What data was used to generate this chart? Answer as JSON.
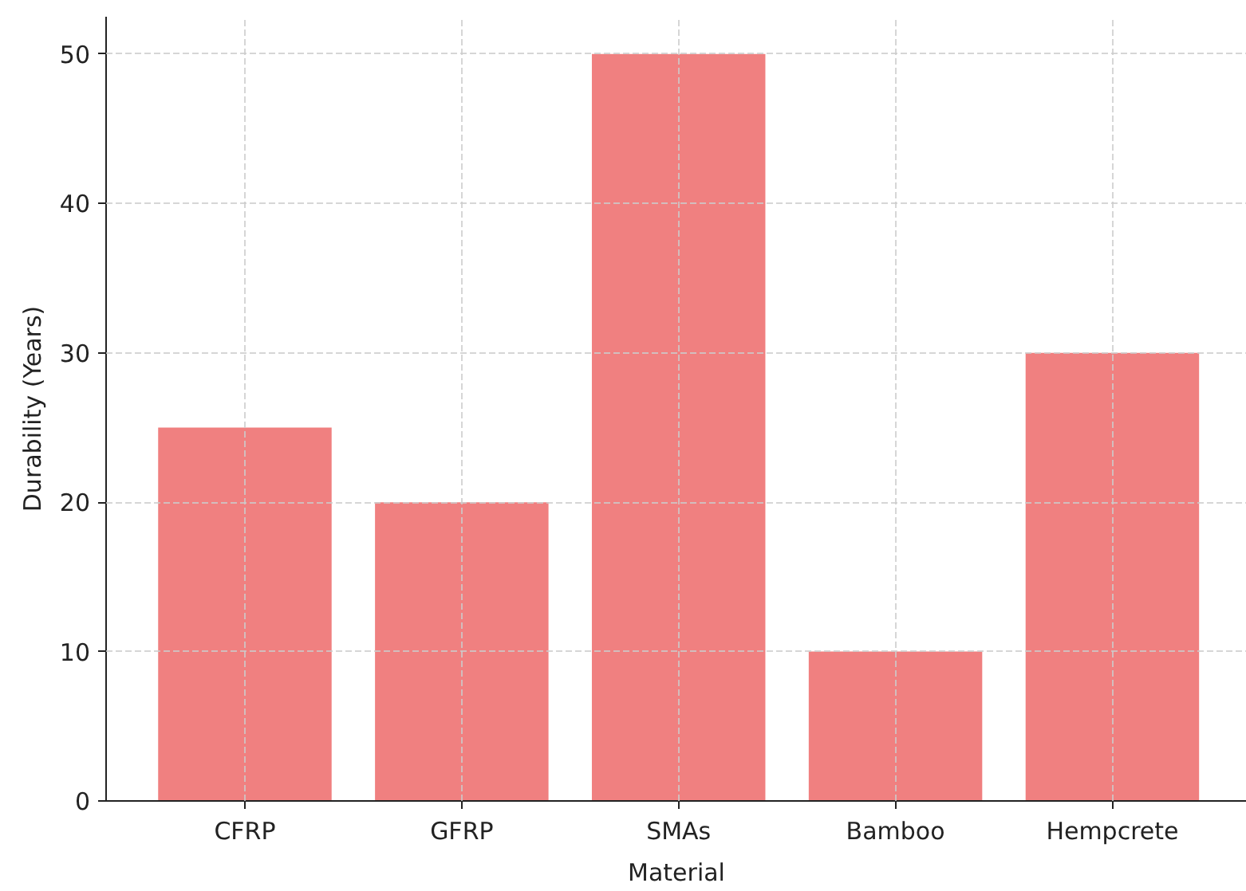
{
  "chart_data": {
    "type": "bar",
    "xlabel": "Material",
    "ylabel": "Durability (Years)",
    "categories": [
      "CFRP",
      "GFRP",
      "SMAs",
      "Bamboo",
      "Hempcrete"
    ],
    "values": [
      25,
      20,
      50,
      10,
      30
    ],
    "color": "#f08080",
    "ylim": [
      0,
      52.5
    ],
    "yticks": [
      0,
      10,
      20,
      30,
      40,
      50
    ],
    "grid": true
  }
}
